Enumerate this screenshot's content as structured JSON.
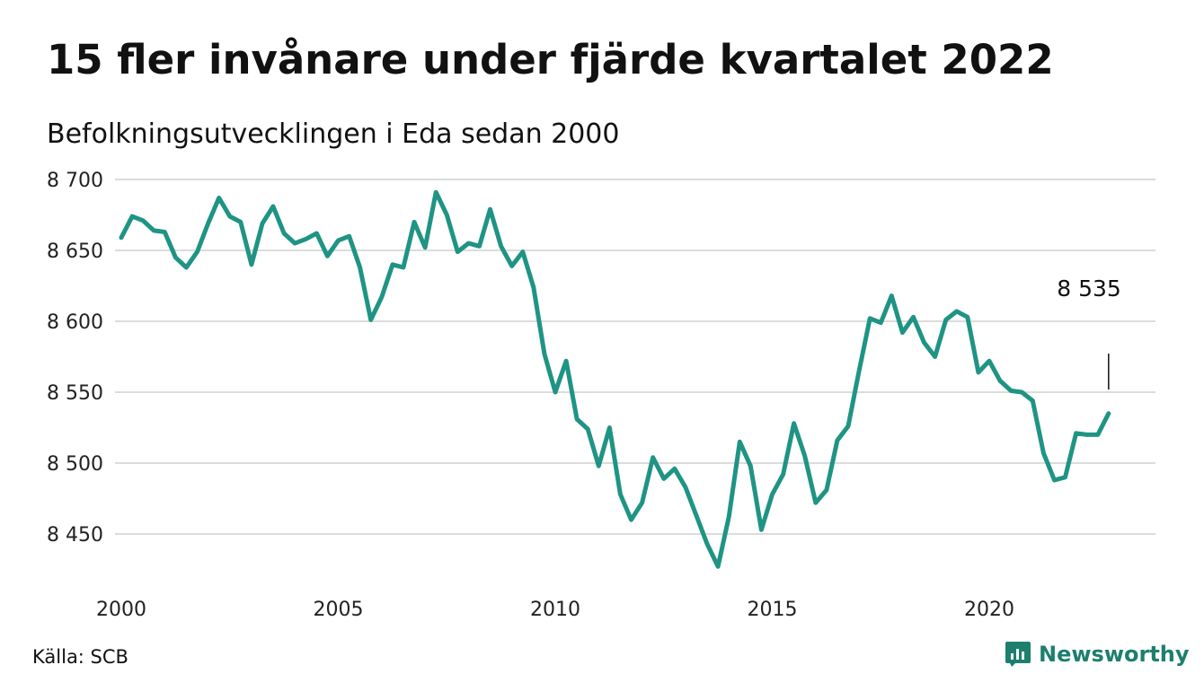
{
  "header": {
    "title": "15 fler invånare under fjärde kvartalet 2022",
    "subtitle": "Befolkningsutvecklingen i Eda sedan 2000"
  },
  "footer": {
    "source": "Källa: SCB",
    "brand": "Newsworthy",
    "brand_icon": "bar-chart-logo-icon"
  },
  "chart_data": {
    "type": "line",
    "xlabel": "",
    "ylabel": "",
    "ylim": [
      8420,
      8700
    ],
    "xlim": [
      2000,
      2023.5
    ],
    "yticks": [
      8450,
      8500,
      8550,
      8600,
      8650,
      8700
    ],
    "yticklabels": [
      "8 450",
      "8 500",
      "8 550",
      "8 600",
      "8 650",
      "8 700"
    ],
    "xticks": [
      2000,
      2005,
      2010,
      2015,
      2020
    ],
    "xticklabels": [
      "2000",
      "2005",
      "2010",
      "2015",
      "2020"
    ],
    "grid": true,
    "line_color": "#1f9484",
    "annotation": {
      "text": "8 535"
    },
    "series": [
      {
        "x": [
          2000.0,
          2000.25,
          2000.5,
          2000.75,
          2001.0,
          2001.25,
          2001.5,
          2001.75,
          2002.0,
          2002.25,
          2002.5,
          2002.75,
          2003.0,
          2003.25,
          2003.5,
          2003.75,
          2004.0,
          2004.25,
          2004.5,
          2004.75,
          2005.0,
          2005.25,
          2005.5,
          2005.75,
          2006.0,
          2006.25,
          2006.5,
          2006.75,
          2007.0,
          2007.25,
          2007.5,
          2007.75,
          2008.0,
          2008.25,
          2008.5,
          2008.75,
          2009.0,
          2009.25,
          2009.5,
          2009.75,
          2010.0,
          2010.25,
          2010.5,
          2010.75,
          2011.0,
          2011.25,
          2011.5,
          2011.75,
          2012.0,
          2012.25,
          2012.5,
          2012.75,
          2013.0,
          2013.25,
          2013.5,
          2013.75,
          2014.0,
          2014.25,
          2014.5,
          2014.75,
          2015.0,
          2015.25,
          2015.5,
          2015.75,
          2016.0,
          2016.25,
          2016.5,
          2016.75,
          2017.0,
          2017.25,
          2017.5,
          2017.75,
          2018.0,
          2018.25,
          2018.5,
          2018.75,
          2019.0,
          2019.25,
          2019.5,
          2019.75,
          2020.0,
          2020.25,
          2020.5,
          2020.75,
          2021.0,
          2021.25,
          2021.5,
          2021.75,
          2022.0,
          2022.25,
          2022.5,
          2022.75
        ],
        "values": [
          8659,
          8674,
          8671,
          8664,
          8663,
          8645,
          8638,
          8649,
          8669,
          8687,
          8674,
          8670,
          8640,
          8669,
          8681,
          8662,
          8655,
          8658,
          8662,
          8646,
          8657,
          8660,
          8638,
          8601,
          8617,
          8640,
          8638,
          8670,
          8652,
          8691,
          8675,
          8649,
          8655,
          8653,
          8679,
          8653,
          8639,
          8649,
          8624,
          8577,
          8550,
          8572,
          8531,
          8524,
          8498,
          8525,
          8478,
          8460,
          8472,
          8504,
          8489,
          8496,
          8483,
          8463,
          8443,
          8427,
          8462,
          8515,
          8498,
          8453,
          8478,
          8492,
          8528,
          8505,
          8472,
          8481,
          8516,
          8526,
          8565,
          8602,
          8599,
          8618,
          8592,
          8603,
          8585,
          8575,
          8601,
          8607,
          8603,
          8564,
          8572,
          8558,
          8551,
          8550,
          8544,
          8507,
          8488,
          8490,
          8521,
          8520,
          8520,
          8535
        ]
      }
    ]
  }
}
